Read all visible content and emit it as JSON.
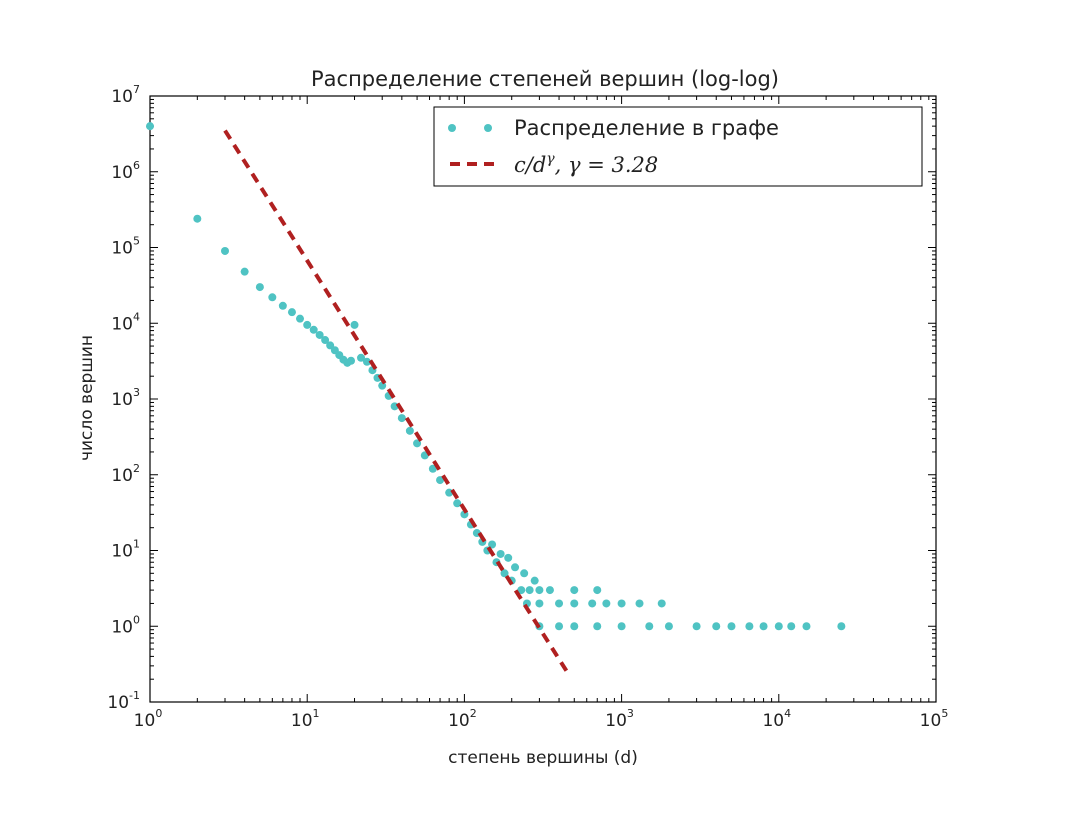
{
  "chart_data": {
    "type": "scatter",
    "title": "Распределение степеней вершин (log-log)",
    "xlabel": "степень вершины (d)",
    "ylabel": "число вершин",
    "xscale": "log",
    "yscale": "log",
    "xlim": [
      1,
      100000
    ],
    "ylim": [
      0.1,
      10000000
    ],
    "x_tick_labels": [
      {
        "base": "10",
        "exp": "0"
      },
      {
        "base": "10",
        "exp": "1"
      },
      {
        "base": "10",
        "exp": "2"
      },
      {
        "base": "10",
        "exp": "3"
      },
      {
        "base": "10",
        "exp": "4"
      },
      {
        "base": "10",
        "exp": "5"
      }
    ],
    "y_tick_labels": [
      {
        "base": "10",
        "exp": "-1"
      },
      {
        "base": "10",
        "exp": "0"
      },
      {
        "base": "10",
        "exp": "1"
      },
      {
        "base": "10",
        "exp": "2"
      },
      {
        "base": "10",
        "exp": "3"
      },
      {
        "base": "10",
        "exp": "4"
      },
      {
        "base": "10",
        "exp": "5"
      },
      {
        "base": "10",
        "exp": "6"
      },
      {
        "base": "10",
        "exp": "7"
      }
    ],
    "grid": false,
    "legend_position": "top-right",
    "series": [
      {
        "name": "Распределение в графе",
        "kind": "scatter",
        "color": "#4fc3c3",
        "points": [
          [
            1,
            4000000
          ],
          [
            2,
            240000
          ],
          [
            3,
            90000
          ],
          [
            4,
            48000
          ],
          [
            5,
            30000
          ],
          [
            6,
            22000
          ],
          [
            7,
            17000
          ],
          [
            8,
            14000
          ],
          [
            9,
            11500
          ],
          [
            10,
            9500
          ],
          [
            11,
            8200
          ],
          [
            12,
            7000
          ],
          [
            13,
            6000
          ],
          [
            14,
            5100
          ],
          [
            15,
            4400
          ],
          [
            16,
            3800
          ],
          [
            17,
            3300
          ],
          [
            18,
            3000
          ],
          [
            19,
            3200
          ],
          [
            20,
            9500
          ],
          [
            22,
            3500
          ],
          [
            24,
            3100
          ],
          [
            26,
            2400
          ],
          [
            28,
            1900
          ],
          [
            30,
            1500
          ],
          [
            33,
            1100
          ],
          [
            36,
            800
          ],
          [
            40,
            560
          ],
          [
            45,
            380
          ],
          [
            50,
            260
          ],
          [
            56,
            180
          ],
          [
            63,
            120
          ],
          [
            70,
            85
          ],
          [
            80,
            58
          ],
          [
            90,
            42
          ],
          [
            100,
            30
          ],
          [
            110,
            22
          ],
          [
            120,
            17
          ],
          [
            130,
            13
          ],
          [
            140,
            10
          ],
          [
            160,
            7
          ],
          [
            180,
            5
          ],
          [
            200,
            4
          ],
          [
            230,
            3
          ],
          [
            260,
            3
          ],
          [
            150,
            12
          ],
          [
            170,
            9
          ],
          [
            190,
            8
          ],
          [
            210,
            6
          ],
          [
            240,
            5
          ],
          [
            280,
            4
          ],
          [
            300,
            3
          ],
          [
            350,
            3
          ],
          [
            500,
            3
          ],
          [
            700,
            3
          ],
          [
            250,
            2
          ],
          [
            300,
            2
          ],
          [
            400,
            2
          ],
          [
            500,
            2
          ],
          [
            650,
            2
          ],
          [
            800,
            2
          ],
          [
            1000,
            2
          ],
          [
            1300,
            2
          ],
          [
            1800,
            2
          ],
          [
            300,
            1
          ],
          [
            400,
            1
          ],
          [
            500,
            1
          ],
          [
            700,
            1
          ],
          [
            1000,
            1
          ],
          [
            1500,
            1
          ],
          [
            2000,
            1
          ],
          [
            3000,
            1
          ],
          [
            4000,
            1
          ],
          [
            5000,
            1
          ],
          [
            6500,
            1
          ],
          [
            8000,
            1
          ],
          [
            10000,
            1
          ],
          [
            12000,
            1
          ],
          [
            15000,
            1
          ],
          [
            25000,
            1
          ]
        ]
      },
      {
        "name": "fit",
        "kind": "dashed-line",
        "color": "#b02020",
        "x": [
          3,
          450
        ],
        "y": [
          3500000,
          0.25
        ]
      }
    ],
    "legend": {
      "scatter_label": "Распределение в графе",
      "fit_label_math": "c/d",
      "fit_label_exp": "γ",
      "fit_label_rest": ", γ = 3.28"
    }
  }
}
